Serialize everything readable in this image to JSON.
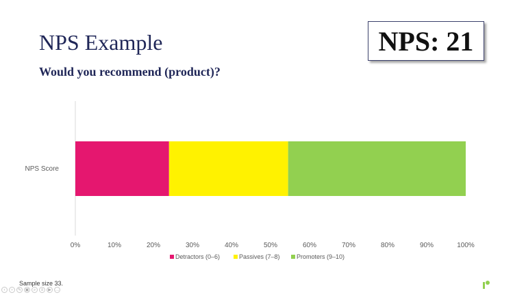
{
  "slide": {
    "title": "NPS Example",
    "subtitle": "Would you recommend (product)?",
    "nps_label": "NPS: 21",
    "footnote": "Sample size 33."
  },
  "colors": {
    "detractors": "#e5176f",
    "passives": "#fff200",
    "promoters": "#92d050",
    "logo": "#92d050"
  },
  "chart_data": {
    "type": "bar",
    "orientation": "horizontal",
    "stacked": true,
    "categories": [
      "NPS Score"
    ],
    "series": [
      {
        "name": "Detractors (0–6)",
        "values": [
          24
        ]
      },
      {
        "name": "Passives (7–8)",
        "values": [
          30.5
        ]
      },
      {
        "name": "Promoters (9–10)",
        "values": [
          45.5
        ]
      }
    ],
    "xlim": [
      0,
      100
    ],
    "x_ticks": [
      "0%",
      "10%",
      "20%",
      "30%",
      "40%",
      "50%",
      "60%",
      "70%",
      "80%",
      "90%",
      "100%"
    ],
    "legend_position": "bottom",
    "grid": false
  },
  "toolbar": {
    "icons": [
      "prev-icon",
      "next-icon",
      "pen-icon",
      "image-icon",
      "zoom-icon",
      "subtitle-icon",
      "video-icon",
      "more-icon"
    ]
  }
}
